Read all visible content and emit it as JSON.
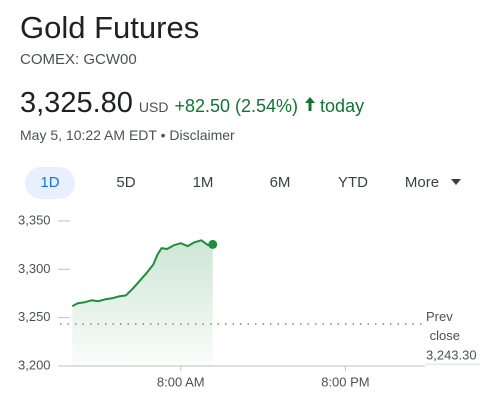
{
  "header": {
    "title": "Gold Futures",
    "subtitle": "COMEX: GCW00",
    "price": "3,325.80",
    "currency": "USD",
    "change": "+82.50 (2.54%)",
    "period": "today",
    "timestamp": "May 5, 10:22 AM EDT • Disclaimer"
  },
  "tabs": [
    "1D",
    "5D",
    "1M",
    "6M",
    "YTD",
    "More"
  ],
  "chart_data": {
    "type": "area",
    "color": "#1e8e3e",
    "x": [
      0.1,
      0.5,
      1,
      1.5,
      2,
      2.5,
      3,
      3.5,
      4,
      4.5,
      5,
      5.5,
      6,
      6.3,
      6.6,
      7,
      7.5,
      8,
      8.5,
      9,
      9.5,
      10,
      10.33
    ],
    "values": [
      3262,
      3265,
      3266,
      3268,
      3267,
      3269,
      3270,
      3272,
      3273,
      3280,
      3288,
      3296,
      3305,
      3315,
      3322,
      3321,
      3325,
      3327,
      3324,
      3328,
      3330,
      3325,
      3325.8
    ],
    "xlim": [
      -0.8,
      25.8
    ],
    "ylim": [
      3200,
      3350
    ],
    "xticks": [
      {
        "value": 8,
        "label": "8:00 AM"
      },
      {
        "value": 20,
        "label": "8:00 PM"
      }
    ],
    "yticks": [
      {
        "value": 3200,
        "label": "3,200"
      },
      {
        "value": 3250,
        "label": "3,250"
      },
      {
        "value": 3300,
        "label": "3,300"
      },
      {
        "value": 3350,
        "label": "3,350"
      }
    ],
    "prev_close": 3243.3,
    "prev_close_label": "Prev close",
    "prev_close_value_label": "3,243.30"
  }
}
